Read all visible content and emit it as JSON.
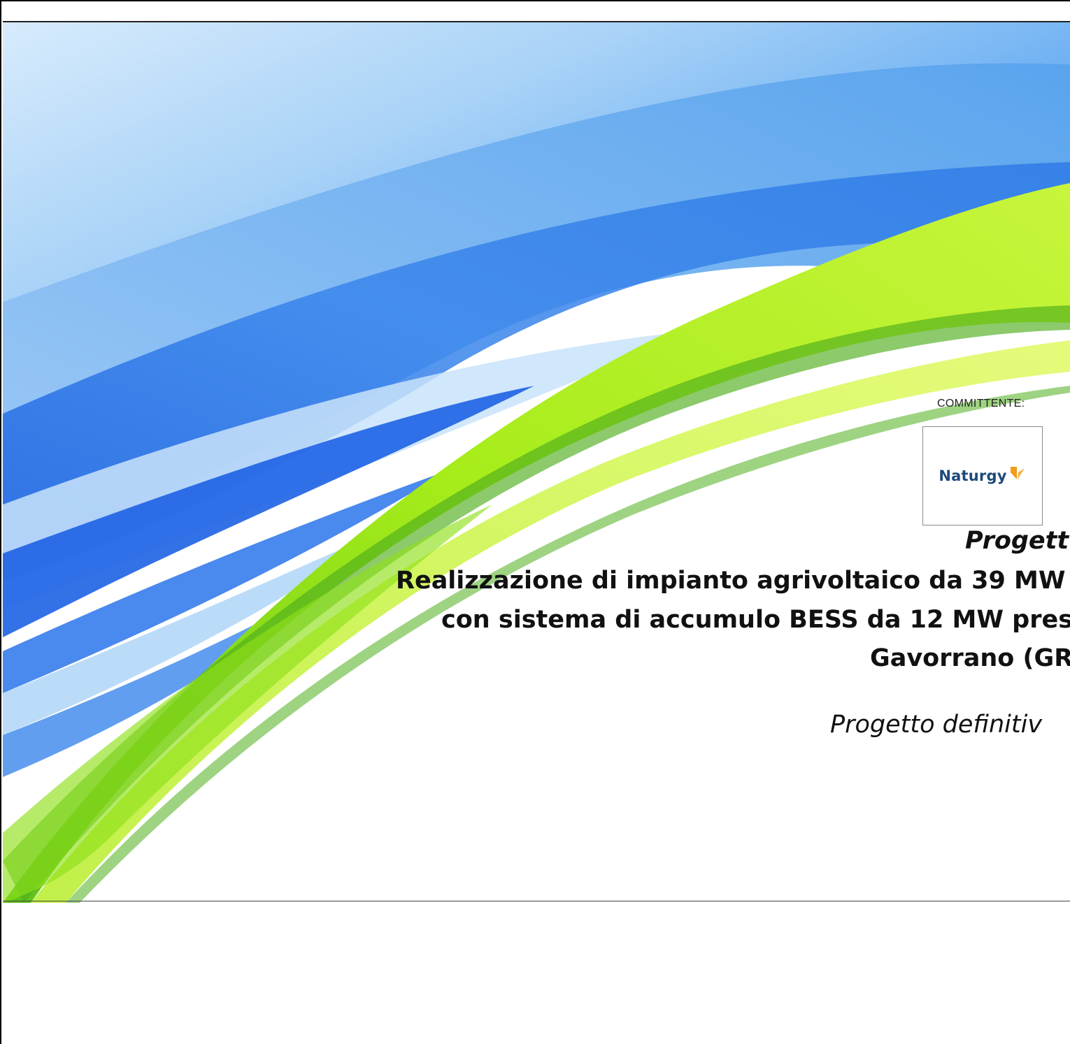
{
  "cover": {
    "committente_label": "COMMITTENTE:",
    "logo": {
      "word": "Naturgy",
      "name": "naturgy-logo"
    },
    "title_heading": "Progett",
    "title_line_1": "Realizzazione di impianto agrivoltaico da 39 MW",
    "title_line_2": "con sistema di accumulo BESS da 12 MW press",
    "title_line_3": "Gavorrano (GR",
    "subtitle": "Progetto definitiv"
  },
  "colors": {
    "blue_light": "#cfe6fb",
    "blue_mid": "#4a97e8",
    "blue_deep": "#1557d8",
    "green_light": "#d8f75a",
    "green_mid": "#9ee81a",
    "green_deep": "#4fae1b",
    "logo_text": "#1e4a7a",
    "logo_orange": "#f39a1a"
  }
}
